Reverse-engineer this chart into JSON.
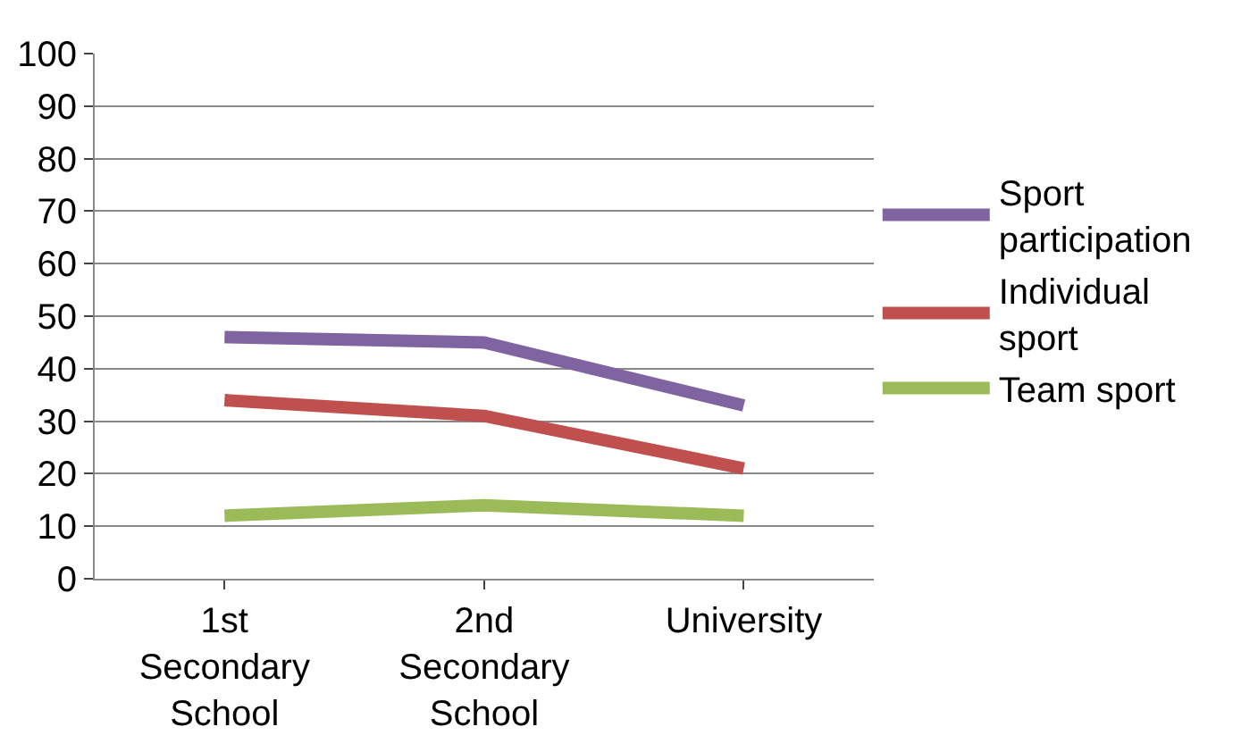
{
  "chart_data": {
    "type": "line",
    "categories": [
      "1st Secondary School",
      "2nd Secondary School",
      "University"
    ],
    "series": [
      {
        "name": "Sport participation",
        "color": "#8064a2",
        "values": [
          46,
          45,
          33
        ]
      },
      {
        "name": "Individual sport",
        "color": "#c0504d",
        "values": [
          34,
          31,
          21
        ]
      },
      {
        "name": "Team sport",
        "color": "#9bbb59",
        "values": [
          12,
          14,
          12
        ]
      }
    ],
    "ylim": [
      0,
      100
    ],
    "yticks": [
      0,
      10,
      20,
      30,
      40,
      50,
      60,
      70,
      80,
      90,
      100
    ],
    "grid": "y",
    "legend": "right",
    "marker": "none",
    "line_style": "solid"
  }
}
